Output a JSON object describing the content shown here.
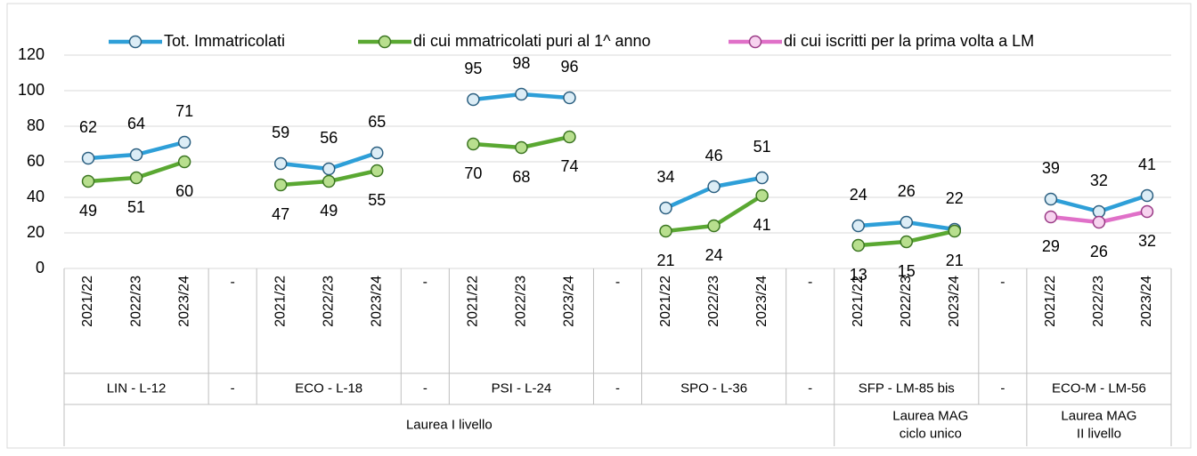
{
  "chart_data": {
    "type": "line",
    "categories": [
      "2021/22",
      "2022/23",
      "2023/24",
      "-",
      "2021/22",
      "2022/23",
      "2023/24",
      "-",
      "2021/22",
      "2022/23",
      "2023/24",
      "-",
      "2021/22",
      "2022/23",
      "2023/24",
      "-",
      "2021/22",
      "2022/23",
      "2023/24",
      "-",
      "2021/22",
      "2022/23",
      "2023/24"
    ],
    "groups": [
      {
        "label": "LIN - L-12",
        "span": 3
      },
      {
        "label": "-",
        "span": 1
      },
      {
        "label": "ECO - L-18",
        "span": 3
      },
      {
        "label": "-",
        "span": 1
      },
      {
        "label": "PSI - L-24",
        "span": 3
      },
      {
        "label": "-",
        "span": 1
      },
      {
        "label": "SPO - L-36",
        "span": 3
      },
      {
        "label": "-",
        "span": 1
      },
      {
        "label": "SFP - LM-85 bis",
        "span": 3
      },
      {
        "label": "-",
        "span": 1
      },
      {
        "label": "ECO-M - LM-56",
        "span": 3
      }
    ],
    "supergroups": [
      {
        "label": [
          "Laurea I livello"
        ],
        "span": 16
      },
      {
        "label": [
          "Laurea MAG",
          "ciclo unico"
        ],
        "span": 4
      },
      {
        "label": [
          "Laurea MAG",
          "II livello"
        ],
        "span": 3
      }
    ],
    "series": [
      {
        "name": "Tot. Immatricolati",
        "color": "#2e9fd8",
        "marker_fill": "#dcedf6",
        "marker_stroke": "#2b5f80",
        "values": [
          62,
          64,
          71,
          null,
          59,
          56,
          65,
          null,
          95,
          98,
          96,
          null,
          34,
          46,
          51,
          null,
          24,
          26,
          22,
          null,
          39,
          32,
          41
        ]
      },
      {
        "name": "di cui mmatricolati puri al 1^ anno",
        "color": "#5aa832",
        "marker_fill": "#b8df8e",
        "marker_stroke": "#3b7521",
        "values": [
          49,
          51,
          60,
          null,
          47,
          49,
          55,
          null,
          70,
          68,
          74,
          null,
          21,
          24,
          41,
          null,
          13,
          15,
          21,
          null,
          null,
          null,
          null
        ]
      },
      {
        "name": "di cui iscritti per la prima volta a LM",
        "color": "#e070c8",
        "marker_fill": "#f7d3ef",
        "marker_stroke": "#9a3a86",
        "values": [
          null,
          null,
          null,
          null,
          null,
          null,
          null,
          null,
          null,
          null,
          null,
          null,
          null,
          null,
          null,
          null,
          null,
          null,
          null,
          null,
          29,
          26,
          32
        ]
      }
    ],
    "ylim": [
      0,
      120
    ],
    "yticks": [
      0,
      20,
      40,
      60,
      80,
      100,
      120
    ],
    "grid": true,
    "legend": "top"
  }
}
